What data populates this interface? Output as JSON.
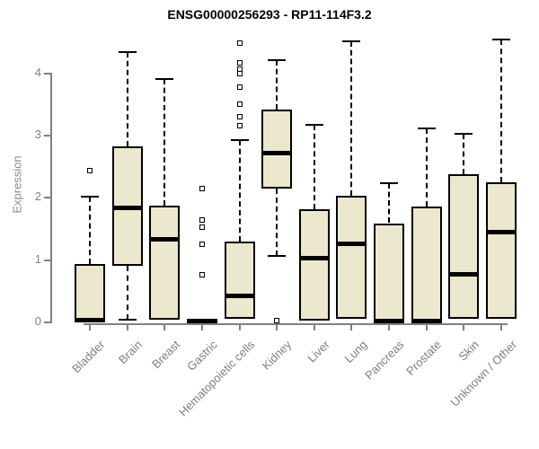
{
  "chart_data": {
    "type": "boxplot",
    "title": "ENSG00000256293 - RP11-114F3.2",
    "ylabel": "Expression",
    "xlabel": "",
    "ylim": [
      0,
      4.6
    ],
    "yticks": [
      0,
      1,
      2,
      3,
      4
    ],
    "grid": false,
    "legend": "none",
    "categories": [
      "Bladder",
      "Brain",
      "Breast",
      "Gastric",
      "Hematopoietic cells",
      "Kidney",
      "Liver",
      "Lung",
      "Pancreas",
      "Prostate",
      "Skin",
      "Unknown / Other"
    ],
    "boxes": [
      {
        "category": "Bladder",
        "low": 0.0,
        "q1": 0.0,
        "median": 0.03,
        "q3": 0.92,
        "high": 2.0,
        "outliers": [
          2.42
        ]
      },
      {
        "category": "Brain",
        "low": 0.03,
        "q1": 0.9,
        "median": 1.83,
        "q3": 2.82,
        "high": 4.33,
        "outliers": []
      },
      {
        "category": "Breast",
        "low": 0.03,
        "q1": 0.03,
        "median": 1.33,
        "q3": 1.86,
        "high": 3.9,
        "outliers": []
      },
      {
        "category": "Gastric",
        "low": 0.0,
        "q1": 0.0,
        "median": 0.02,
        "q3": 0.05,
        "high": 0.05,
        "outliers": [
          2.14,
          1.63,
          1.52,
          1.24,
          0.75
        ]
      },
      {
        "category": "Hematopoietic cells",
        "low": 0.03,
        "q1": 0.04,
        "median": 0.42,
        "q3": 1.28,
        "high": 2.92,
        "outliers": [
          4.48,
          4.15,
          4.06,
          3.98,
          3.77,
          3.49,
          3.29,
          3.14
        ]
      },
      {
        "category": "Kidney",
        "low": 1.06,
        "q1": 2.14,
        "median": 2.72,
        "q3": 3.4,
        "high": 4.2,
        "outliers": [
          0.02
        ]
      },
      {
        "category": "Liver",
        "low": 0.02,
        "q1": 0.02,
        "median": 1.03,
        "q3": 1.8,
        "high": 3.16,
        "outliers": []
      },
      {
        "category": "Lung",
        "low": 0.03,
        "q1": 0.04,
        "median": 1.25,
        "q3": 2.02,
        "high": 4.5,
        "outliers": []
      },
      {
        "category": "Pancreas",
        "low": 0.0,
        "q1": 0.0,
        "median": 0.02,
        "q3": 1.58,
        "high": 2.22,
        "outliers": []
      },
      {
        "category": "Prostate",
        "low": 0.0,
        "q1": 0.0,
        "median": 0.02,
        "q3": 1.85,
        "high": 3.1,
        "outliers": []
      },
      {
        "category": "Skin",
        "low": 0.03,
        "q1": 0.04,
        "median": 0.76,
        "q3": 2.36,
        "high": 3.02,
        "outliers": []
      },
      {
        "category": "Unknown / Other",
        "low": 0.03,
        "q1": 0.04,
        "median": 1.45,
        "q3": 2.24,
        "high": 4.53,
        "outliers": []
      }
    ],
    "colors": {
      "box_fill": "#ece8cd",
      "box_border": "#000000",
      "median": "#000000",
      "whisker": "#000000",
      "axis": "#808080",
      "tick_label": "#7f7f7f",
      "title": "#000000",
      "background": "#ffffff"
    }
  }
}
